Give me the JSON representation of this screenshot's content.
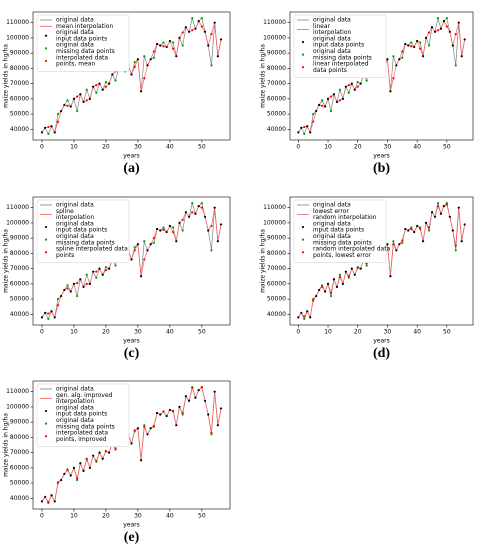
{
  "chart_data": {
    "type": "line",
    "xlabel": "years",
    "ylabel": "maize yields in hg/ha",
    "x": [
      0,
      1,
      2,
      3,
      4,
      5,
      6,
      7,
      8,
      9,
      10,
      11,
      12,
      13,
      14,
      15,
      16,
      17,
      18,
      19,
      20,
      21,
      22,
      23,
      24,
      25,
      26,
      27,
      28,
      29,
      30,
      31,
      32,
      33,
      34,
      35,
      36,
      37,
      38,
      39,
      40,
      41,
      42,
      43,
      44,
      45,
      46,
      47,
      48,
      49,
      50,
      51,
      52,
      53,
      54,
      55,
      56
    ],
    "xlim": [
      -2.8,
      58.8
    ],
    "xticks": [
      0,
      10,
      20,
      30,
      40,
      50
    ],
    "ylim": [
      33000,
      117000
    ],
    "yticks": [
      40000,
      50000,
      60000,
      70000,
      80000,
      90000,
      100000,
      110000
    ],
    "series": [
      {
        "name": "original data",
        "color": "#808080",
        "values": [
          38000,
          41000,
          37000,
          42000,
          38000,
          50000,
          52000,
          56000,
          59000,
          55000,
          60000,
          52000,
          63000,
          58000,
          66000,
          60000,
          68000,
          64000,
          70000,
          66000,
          71000,
          70000,
          76000,
          72000,
          80000,
          83000,
          78000,
          82000,
          76000,
          84000,
          86000,
          65000,
          88000,
          82000,
          86000,
          87000,
          96000,
          95000,
          97000,
          94000,
          98000,
          97000,
          88000,
          100000,
          95000,
          107000,
          104000,
          113000,
          106000,
          111000,
          113000,
          104000,
          95000,
          82000,
          110000,
          88000,
          99000
        ]
      }
    ],
    "missing_x": [
      2,
      5,
      8,
      11,
      14,
      17,
      20,
      23,
      26,
      29,
      32,
      35,
      38,
      41,
      44,
      47,
      50,
      53
    ],
    "interp_color": "#ff5a5a",
    "input_color": "#000000",
    "missing_color": "#00a000",
    "interpolated_color": "#ff0000",
    "panels": [
      {
        "label": "(a)",
        "legend": [
          [
            "mean interpolation"
          ],
          [
            "original data",
            "input data points"
          ],
          [
            "original data",
            "missing data points"
          ],
          [
            "interpolated data",
            "points, mean"
          ]
        ],
        "interpolated": [
          41500,
          45000,
          55500,
          61500,
          59000,
          69000,
          68000,
          78000,
          82500,
          81000,
          73500,
          91000,
          94500,
          93000,
          103500,
          105000,
          107500,
          102500
        ]
      },
      {
        "label": "(b)",
        "legend": [
          [
            "linear",
            "interpolation"
          ],
          [
            "original data",
            "input data points"
          ],
          [
            "original data",
            "missing data points"
          ],
          [
            "linear interpolated",
            "data points"
          ]
        ],
        "interpolated": [
          41500,
          45000,
          55500,
          61500,
          59000,
          69000,
          68000,
          78000,
          82500,
          81000,
          73500,
          91000,
          94500,
          93000,
          103500,
          105000,
          107500,
          102500
        ]
      },
      {
        "label": "(c)",
        "legend": [
          [
            "spline",
            "interpolation"
          ],
          [
            "original data",
            "input data points"
          ],
          [
            "original data",
            "missing data points"
          ],
          [
            "spline interpolated data",
            "points"
          ]
        ],
        "interpolated": [
          40500,
          46000,
          57000,
          60500,
          60000,
          68000,
          69000,
          77000,
          82000,
          82000,
          76000,
          90000,
          95500,
          94000,
          102000,
          107000,
          110000,
          98000
        ]
      },
      {
        "label": "(d)",
        "legend": [
          [
            "lowest error",
            "random interpolation"
          ],
          [
            "original data",
            "input data points"
          ],
          [
            "original data",
            "missing data points"
          ],
          [
            "random interpolated data",
            "points, lowest error"
          ]
        ],
        "interpolated": [
          38500,
          49000,
          58000,
          54000,
          64500,
          65000,
          70500,
          73500,
          79000,
          83000,
          86000,
          88500,
          96000,
          96000,
          97000,
          111000,
          112000,
          85000
        ]
      },
      {
        "label": "(e)",
        "legend": [
          [
            "gen. alg. improved",
            "interpolation"
          ],
          [
            "original data",
            "input data points"
          ],
          [
            "original data",
            "missing data points"
          ],
          [
            "interpolated data",
            "points, improved"
          ]
        ],
        "interpolated": [
          37500,
          50500,
          58500,
          53000,
          65500,
          64500,
          71000,
          72500,
          78500,
          84500,
          87000,
          87500,
          97000,
          97500,
          96000,
          112500,
          113000,
          83000
        ]
      }
    ]
  }
}
